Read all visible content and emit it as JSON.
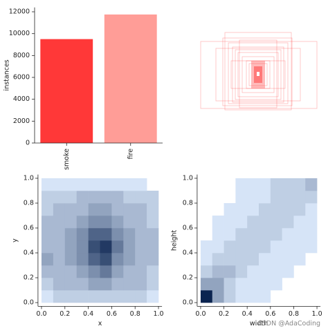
{
  "chart_data": [
    {
      "type": "bar",
      "y_label": "instances",
      "categories": [
        "smoke",
        "fire"
      ],
      "values": [
        9500,
        11750
      ],
      "colors": [
        "#ff3838",
        "#ff9d97"
      ],
      "ylim": [
        0,
        12400
      ],
      "yticks": [
        0,
        2000,
        4000,
        6000,
        8000,
        10000,
        12000
      ]
    },
    {
      "type": "histogram2d",
      "x_label": "x",
      "y_label": "y",
      "x_bins": [
        0,
        0.1,
        0.2,
        0.3,
        0.4,
        0.5,
        0.6,
        0.7,
        0.8,
        0.9,
        1
      ],
      "y_bins": [
        0,
        0.1,
        0.2,
        0.3,
        0.4,
        0.5,
        0.6,
        0.7,
        0.8,
        0.9,
        1
      ],
      "density": [
        [
          1,
          2,
          2,
          2,
          2,
          2,
          2,
          2,
          2,
          1
        ],
        [
          2,
          3,
          3,
          3,
          4,
          4,
          3,
          3,
          3,
          2
        ],
        [
          3,
          3,
          3,
          4,
          5,
          6,
          4,
          3,
          3,
          2
        ],
        [
          4,
          3,
          4,
          5,
          7,
          8,
          5,
          4,
          3,
          3
        ],
        [
          3,
          3,
          4,
          5,
          8,
          9,
          6,
          4,
          3,
          3
        ],
        [
          3,
          3,
          4,
          5,
          7,
          7,
          5,
          4,
          3,
          3
        ],
        [
          3,
          3,
          3,
          4,
          5,
          5,
          4,
          3,
          3,
          2
        ],
        [
          2,
          3,
          3,
          3,
          4,
          4,
          3,
          3,
          3,
          2
        ],
        [
          2,
          2,
          2,
          3,
          3,
          3,
          3,
          2,
          2,
          2
        ],
        [
          1,
          1,
          1,
          1,
          1,
          1,
          1,
          1,
          1,
          0
        ]
      ],
      "xlim": [
        -0.03,
        1.03
      ],
      "ylim": [
        -0.03,
        1.03
      ],
      "xticks": [
        {
          "value": 0,
          "label": "0.0"
        },
        0.2,
        0.4,
        0.6,
        0.8,
        {
          "value": 1,
          "label": "1.0"
        }
      ],
      "yticks": [
        {
          "value": 0,
          "label": "0.0"
        },
        0.2,
        0.4,
        0.6,
        0.8,
        {
          "value": 1,
          "label": "1.0"
        }
      ]
    },
    {
      "type": "histogram2d",
      "x_label": "width",
      "y_label": "height",
      "watermark": "CSDN @AdaCoding",
      "x_bins": [
        0,
        0.1,
        0.2,
        0.3,
        0.4,
        0.5,
        0.6,
        0.7,
        0.8,
        0.9,
        1
      ],
      "y_bins": [
        0,
        0.1,
        0.2,
        0.3,
        0.4,
        0.5,
        0.6,
        0.7,
        0.8,
        0.9,
        1
      ],
      "density": [
        [
          10,
          4,
          2,
          1,
          1,
          1,
          0,
          0,
          0,
          0
        ],
        [
          4,
          4,
          2,
          1,
          1,
          1,
          1,
          0,
          0,
          0
        ],
        [
          2,
          3,
          3,
          2,
          1,
          1,
          1,
          1,
          0,
          0
        ],
        [
          1,
          2,
          2,
          2,
          2,
          1,
          1,
          1,
          1,
          0
        ],
        [
          1,
          1,
          2,
          2,
          2,
          2,
          1,
          1,
          1,
          1
        ],
        [
          0,
          1,
          1,
          2,
          2,
          2,
          2,
          1,
          1,
          1
        ],
        [
          0,
          1,
          1,
          1,
          2,
          2,
          2,
          2,
          1,
          1
        ],
        [
          0,
          0,
          1,
          1,
          1,
          2,
          2,
          2,
          2,
          1
        ],
        [
          0,
          0,
          0,
          1,
          1,
          1,
          2,
          2,
          2,
          2
        ],
        [
          0,
          0,
          0,
          1,
          1,
          1,
          2,
          2,
          2,
          3
        ]
      ],
      "xlim": [
        -0.03,
        1.03
      ],
      "ylim": [
        -0.03,
        1.03
      ],
      "xticks": [
        {
          "value": 0,
          "label": "0.0"
        },
        0.2,
        0.4,
        0.6,
        0.8,
        {
          "value": 1,
          "label": "1.0"
        }
      ],
      "yticks": [
        {
          "value": 0,
          "label": "0.0"
        },
        0.2,
        0.4,
        0.6,
        0.8,
        {
          "value": 1,
          "label": "1.0"
        }
      ]
    }
  ]
}
